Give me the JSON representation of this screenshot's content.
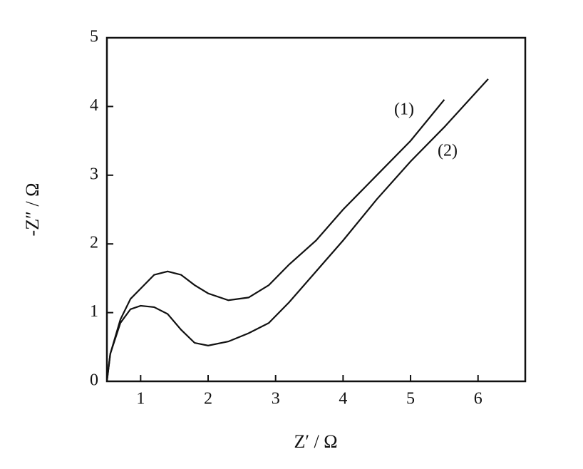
{
  "chart_data": {
    "type": "line",
    "x_label": "Z′ / Ω",
    "y_label": "-Z″ / Ω",
    "xlim": [
      0.5,
      6.7
    ],
    "ylim": [
      0,
      5
    ],
    "xticks": [
      1,
      2,
      3,
      4,
      5,
      6
    ],
    "yticks": [
      0,
      1,
      2,
      3,
      4,
      5
    ],
    "grid": false,
    "series": [
      {
        "name": "(1)",
        "color": "#111111",
        "x": [
          0.5,
          0.55,
          0.7,
          0.85,
          1.0,
          1.2,
          1.4,
          1.6,
          1.8,
          2.0,
          2.3,
          2.6,
          2.9,
          3.2,
          3.6,
          4.0,
          4.5,
          5.0,
          5.5
        ],
        "values": [
          0,
          0.4,
          0.9,
          1.2,
          1.35,
          1.55,
          1.6,
          1.55,
          1.4,
          1.28,
          1.18,
          1.22,
          1.4,
          1.7,
          2.05,
          2.5,
          3.0,
          3.5,
          4.1
        ]
      },
      {
        "name": "(2)",
        "color": "#111111",
        "x": [
          0.5,
          0.55,
          0.7,
          0.85,
          1.0,
          1.2,
          1.4,
          1.6,
          1.8,
          2.0,
          2.3,
          2.6,
          2.9,
          3.2,
          3.6,
          4.0,
          4.5,
          5.0,
          5.5,
          6.15
        ],
        "values": [
          0,
          0.4,
          0.85,
          1.05,
          1.1,
          1.08,
          0.98,
          0.75,
          0.56,
          0.52,
          0.58,
          0.7,
          0.85,
          1.15,
          1.6,
          2.05,
          2.65,
          3.2,
          3.7,
          4.4
        ]
      }
    ]
  }
}
